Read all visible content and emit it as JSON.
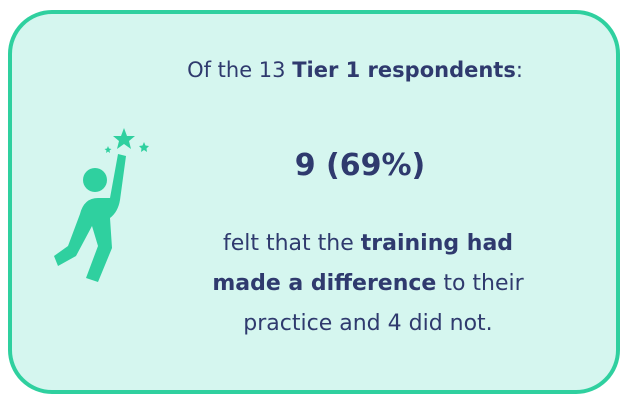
{
  "heading": {
    "before": "Of the 13 ",
    "bold": "Tier 1 respondents",
    "after": ":"
  },
  "highlight": "9 (69%)",
  "body": {
    "before": "felt that the ",
    "bold": "training had made a difference",
    "after": " to their practice and 4 did not."
  }
}
